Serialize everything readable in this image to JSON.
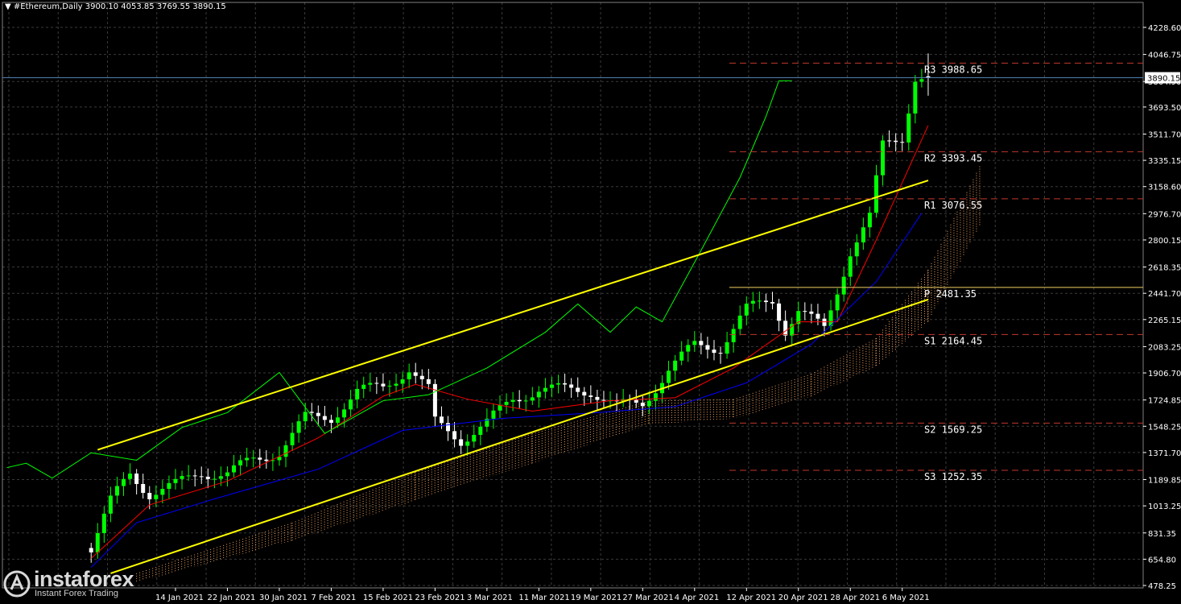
{
  "header": {
    "symbol_line": "▼ #Ethereum,Daily  3900.10 4053.85 3769.55 3890.15"
  },
  "current_price_label": "3890.15",
  "logo": {
    "word": "instaforex",
    "sub": "Instant Forex Trading",
    "icon": "instaforex-logo-icon"
  },
  "colors": {
    "background": "#000000",
    "grid": "#3a3a3a",
    "bull_candle": "#00ff00",
    "bear_candle": "#ffffff",
    "tenkan": "#ff0000",
    "kijun": "#0000ff",
    "chikou": "#00ff00",
    "cloud": "#f4a460",
    "channel": "#ffff00",
    "pivot_lines": "#c0392b",
    "pivot_main": "#f0d060",
    "axis_text": "#ffffff"
  },
  "chart_data": {
    "type": "candlestick",
    "title": "#Ethereum,Daily",
    "ohlc_last": {
      "open": 3900.1,
      "high": 4053.85,
      "low": 3769.55,
      "close": 3890.15
    },
    "y_ticks": [
      "4228.60",
      "4046.75",
      "3864.90",
      "3693.50",
      "3511.70",
      "3335.15",
      "3158.60",
      "2976.70",
      "2800.15",
      "2618.35",
      "2441.70",
      "2265.15",
      "2083.25",
      "1906.70",
      "1724.85",
      "1548.25",
      "1371.70",
      "1189.85",
      "1013.25",
      "831.35",
      "654.80",
      "478.25"
    ],
    "ylim": [
      478.25,
      4228.6
    ],
    "x_ticks": [
      "14 Jan 2021",
      "22 Jan 2021",
      "30 Jan 2021",
      "7 Feb 2021",
      "15 Feb 2021",
      "23 Feb 2021",
      "3 Mar 2021",
      "11 Mar 2021",
      "19 Mar 2021",
      "27 Mar 2021",
      "4 Apr 2021",
      "12 Apr 2021",
      "20 Apr 2021",
      "28 Apr 2021",
      "6 May 2021"
    ],
    "pivot_levels": [
      {
        "label": "R3",
        "value": 3988.65,
        "text": "R3 3988.65"
      },
      {
        "label": "R2",
        "value": 3393.45,
        "text": "R2 3393.45"
      },
      {
        "label": "R1",
        "value": 3076.55,
        "text": "R1 3076.55"
      },
      {
        "label": "P",
        "value": 2481.35,
        "text": "P 2481.35"
      },
      {
        "label": "S1",
        "value": 2164.45,
        "text": "S1 2164.45"
      },
      {
        "label": "S2",
        "value": 1569.25,
        "text": "S2 1569.25"
      },
      {
        "label": "S3",
        "value": 1252.35,
        "text": "S3 1252.35"
      }
    ],
    "current_price": 3890.15,
    "channel": {
      "upper": [
        {
          "date": "2021-01-02",
          "value": 1390
        },
        {
          "date": "2021-05-10",
          "value": 3200
        }
      ],
      "lower": [
        {
          "date": "2021-01-04",
          "value": 560
        },
        {
          "date": "2021-05-10",
          "value": 2400
        }
      ]
    },
    "closes": [
      {
        "date": "2021-01-01",
        "value": 730
      },
      {
        "date": "2021-01-04",
        "value": 1040
      },
      {
        "date": "2021-01-07",
        "value": 1230
      },
      {
        "date": "2021-01-10",
        "value": 1100
      },
      {
        "date": "2021-01-14",
        "value": 1150
      },
      {
        "date": "2021-01-18",
        "value": 1240
      },
      {
        "date": "2021-01-22",
        "value": 1230
      },
      {
        "date": "2021-01-26",
        "value": 1320
      },
      {
        "date": "2021-01-30",
        "value": 1380
      },
      {
        "date": "2021-02-03",
        "value": 1600
      },
      {
        "date": "2021-02-07",
        "value": 1610
      },
      {
        "date": "2021-02-11",
        "value": 1780
      },
      {
        "date": "2021-02-15",
        "value": 1810
      },
      {
        "date": "2021-02-19",
        "value": 1940
      },
      {
        "date": "2021-02-22",
        "value": 1790
      },
      {
        "date": "2021-02-23",
        "value": 1570
      },
      {
        "date": "2021-02-27",
        "value": 1460
      },
      {
        "date": "2021-03-03",
        "value": 1570
      },
      {
        "date": "2021-03-07",
        "value": 1730
      },
      {
        "date": "2021-03-11",
        "value": 1800
      },
      {
        "date": "2021-03-15",
        "value": 1790
      },
      {
        "date": "2021-03-19",
        "value": 1790
      },
      {
        "date": "2021-03-23",
        "value": 1680
      },
      {
        "date": "2021-03-27",
        "value": 1700
      },
      {
        "date": "2021-03-31",
        "value": 1930
      },
      {
        "date": "2021-04-04",
        "value": 2090
      },
      {
        "date": "2021-04-08",
        "value": 2080
      },
      {
        "date": "2021-04-12",
        "value": 2330
      },
      {
        "date": "2021-04-16",
        "value": 2400
      },
      {
        "date": "2021-04-18",
        "value": 2200
      },
      {
        "date": "2021-04-20",
        "value": 2320
      },
      {
        "date": "2021-04-24",
        "value": 2200
      },
      {
        "date": "2021-04-28",
        "value": 2730
      },
      {
        "date": "2021-05-01",
        "value": 2950
      },
      {
        "date": "2021-05-03",
        "value": 3430
      },
      {
        "date": "2021-05-06",
        "value": 3490
      },
      {
        "date": "2021-05-08",
        "value": 3900
      },
      {
        "date": "2021-05-10",
        "value": 3890
      }
    ]
  }
}
